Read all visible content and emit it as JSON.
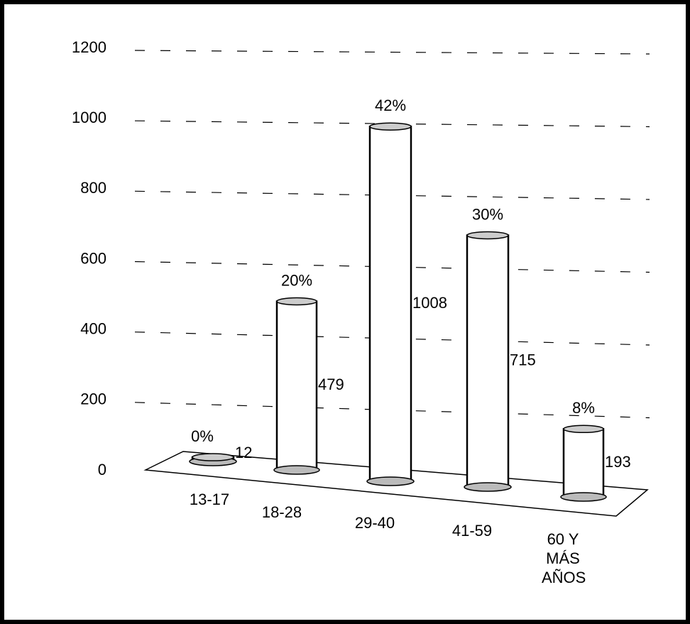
{
  "chart_data": {
    "type": "bar",
    "categories": [
      "13-17",
      "18-28",
      "29-40",
      "41-59",
      "60 Y MÁS AÑOS"
    ],
    "values": [
      12,
      479,
      1008,
      715,
      193
    ],
    "percent_labels": [
      "0%",
      "20%",
      "42%",
      "30%",
      "8%"
    ],
    "color": "#ffffff",
    "ylim": [
      0,
      1200
    ],
    "yticks": [
      0,
      200,
      400,
      600,
      800,
      1000,
      1200
    ],
    "grid": true
  }
}
